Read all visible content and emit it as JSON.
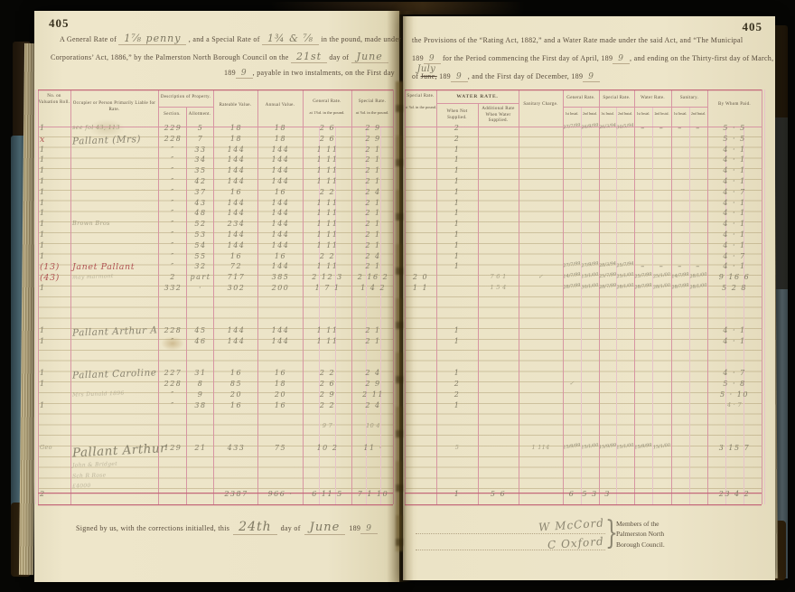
{
  "palette": {
    "page": "#ece4c8",
    "rule_pink": "#d795a3",
    "rule_red": "#c4697a",
    "pencil": "#837d67",
    "red_ink": "#b15454"
  },
  "left_page": {
    "page_number": "405",
    "header": {
      "l1a": "A General Rate of",
      "l1h1": "1⅞ penny",
      "l1b": ", and a Special Rate of",
      "l1h2": "1¾ & ⅞",
      "l1c": "in the pound, made under",
      "l2a": "Corporations’ Act, 1886,” by the Palmerston North Borough Council on the",
      "l2h1": "21st",
      "l2b": "day of",
      "l2h2": "June",
      "l3a": "189",
      "l3h1": "9",
      "l3b": ", payable in two instalments, on the First day"
    },
    "columns": {
      "vr": "No. on Valuation Roll.",
      "occ": "Occupier or Person Primarily Liable for Rate.",
      "desc": "Description of Property.",
      "sec": "Section.",
      "al": "Allotment.",
      "rv": "Rateable Value.",
      "av": "Annual Value.",
      "g1": "General Rate.",
      "g2": "at 1⅞d. in the pound.",
      "s1": "Special Rate.",
      "s2": "at ⅞d. in the pound."
    },
    "entries": [
      [
        0,
        "occ",
        "see fol 43, 113",
        "f"
      ],
      [
        0,
        "vr",
        "1"
      ],
      [
        0,
        "sec",
        "229"
      ],
      [
        0,
        "al",
        "5"
      ],
      [
        0,
        "rv",
        "18"
      ],
      [
        0,
        "av",
        "18"
      ],
      [
        0,
        "g",
        "2 6"
      ],
      [
        0,
        "s",
        "2 9"
      ],
      [
        1,
        "vr",
        "x",
        "r"
      ],
      [
        1,
        "occ",
        "Pallant (Mrs)",
        "n"
      ],
      [
        1,
        "sec",
        "228"
      ],
      [
        1,
        "al",
        "7"
      ],
      [
        1,
        "rv",
        "18"
      ],
      [
        1,
        "av",
        "18"
      ],
      [
        1,
        "g",
        "2 6"
      ],
      [
        1,
        "s",
        "2 9"
      ],
      [
        2,
        "vr",
        "1"
      ],
      [
        2,
        "sec",
        "″"
      ],
      [
        2,
        "al",
        "33"
      ],
      [
        2,
        "rv",
        "144"
      ],
      [
        2,
        "av",
        "144"
      ],
      [
        2,
        "g",
        "1 11"
      ],
      [
        2,
        "s",
        "2 1"
      ],
      [
        3,
        "vr",
        "1"
      ],
      [
        3,
        "sec",
        "″"
      ],
      [
        3,
        "al",
        "34"
      ],
      [
        3,
        "rv",
        "144"
      ],
      [
        3,
        "av",
        "144"
      ],
      [
        3,
        "g",
        "1 11"
      ],
      [
        3,
        "s",
        "2 1"
      ],
      [
        4,
        "vr",
        "1"
      ],
      [
        4,
        "sec",
        "″"
      ],
      [
        4,
        "al",
        "35"
      ],
      [
        4,
        "rv",
        "144"
      ],
      [
        4,
        "av",
        "144"
      ],
      [
        4,
        "g",
        "1 11"
      ],
      [
        4,
        "s",
        "2 1"
      ],
      [
        5,
        "vr",
        "1"
      ],
      [
        5,
        "sec",
        "″"
      ],
      [
        5,
        "al",
        "42"
      ],
      [
        5,
        "rv",
        "144"
      ],
      [
        5,
        "av",
        "144"
      ],
      [
        5,
        "g",
        "1 11"
      ],
      [
        5,
        "s",
        "2 1"
      ],
      [
        6,
        "vr",
        "1"
      ],
      [
        6,
        "sec",
        "″"
      ],
      [
        6,
        "al",
        "37"
      ],
      [
        6,
        "rv",
        "16"
      ],
      [
        6,
        "av",
        "16"
      ],
      [
        6,
        "g",
        "2 2"
      ],
      [
        6,
        "s",
        "2 4"
      ],
      [
        7,
        "vr",
        "1"
      ],
      [
        7,
        "sec",
        "″"
      ],
      [
        7,
        "al",
        "43"
      ],
      [
        7,
        "rv",
        "144"
      ],
      [
        7,
        "av",
        "144"
      ],
      [
        7,
        "g",
        "1 11"
      ],
      [
        7,
        "s",
        "2 1"
      ],
      [
        8,
        "vr",
        "1"
      ],
      [
        8,
        "sec",
        "″"
      ],
      [
        8,
        "al",
        "48"
      ],
      [
        8,
        "rv",
        "144"
      ],
      [
        8,
        "av",
        "144"
      ],
      [
        8,
        "g",
        "1 11"
      ],
      [
        8,
        "s",
        "2 1"
      ],
      [
        9,
        "vr",
        "1"
      ],
      [
        9,
        "occ",
        "Brown Bros",
        "f"
      ],
      [
        9,
        "sec",
        "″"
      ],
      [
        9,
        "al",
        "52"
      ],
      [
        9,
        "rv",
        "234"
      ],
      [
        9,
        "av",
        "144"
      ],
      [
        9,
        "g",
        "1 11"
      ],
      [
        9,
        "s",
        "2 1"
      ],
      [
        10,
        "vr",
        "1"
      ],
      [
        10,
        "sec",
        "″"
      ],
      [
        10,
        "al",
        "53"
      ],
      [
        10,
        "rv",
        "144"
      ],
      [
        10,
        "av",
        "144"
      ],
      [
        10,
        "g",
        "1 11"
      ],
      [
        10,
        "s",
        "2 1"
      ],
      [
        11,
        "vr",
        "1"
      ],
      [
        11,
        "sec",
        "″"
      ],
      [
        11,
        "al",
        "54"
      ],
      [
        11,
        "rv",
        "144"
      ],
      [
        11,
        "av",
        "144"
      ],
      [
        11,
        "g",
        "1 11"
      ],
      [
        11,
        "s",
        "2 1"
      ],
      [
        12,
        "vr",
        "1"
      ],
      [
        12,
        "sec",
        "″"
      ],
      [
        12,
        "al",
        "55"
      ],
      [
        12,
        "rv",
        "16"
      ],
      [
        12,
        "av",
        "16"
      ],
      [
        12,
        "g",
        "2 2"
      ],
      [
        12,
        "s",
        "2 4"
      ],
      [
        13,
        "vr",
        "(13)",
        "r"
      ],
      [
        13,
        "occ",
        "Janet Pallant",
        "r"
      ],
      [
        13,
        "sec",
        "″"
      ],
      [
        13,
        "al",
        "32"
      ],
      [
        13,
        "rv",
        "72"
      ],
      [
        13,
        "av",
        "144"
      ],
      [
        13,
        "g",
        "1 11"
      ],
      [
        13,
        "s",
        "2 1"
      ],
      [
        14,
        "vr",
        "(43)",
        "r"
      ],
      [
        14,
        "occ",
        "may marmont",
        "f2"
      ],
      [
        14,
        "sec",
        "2"
      ],
      [
        14,
        "al",
        "part"
      ],
      [
        14,
        "rv",
        "717"
      ],
      [
        14,
        "av",
        "385"
      ],
      [
        14,
        "g",
        "2 12 3"
      ],
      [
        14,
        "s",
        "2 16 2"
      ],
      [
        15,
        "vr",
        "1"
      ],
      [
        15,
        "sec",
        "332"
      ],
      [
        15,
        "al",
        "·"
      ],
      [
        15,
        "rv",
        "302"
      ],
      [
        15,
        "av",
        "200"
      ],
      [
        15,
        "g",
        "1 7 1"
      ],
      [
        15,
        "s",
        "1 4 2"
      ],
      [
        19,
        "vr",
        "1"
      ],
      [
        19,
        "occ",
        "Pallant Arthur A",
        "n"
      ],
      [
        19,
        "sec",
        "228"
      ],
      [
        19,
        "al",
        "45"
      ],
      [
        19,
        "rv",
        "144"
      ],
      [
        19,
        "av",
        "144"
      ],
      [
        19,
        "g",
        "1 11"
      ],
      [
        19,
        "s",
        "2 1"
      ],
      [
        20,
        "vr",
        "1"
      ],
      [
        20,
        "sec",
        "″"
      ],
      [
        20,
        "al",
        "46"
      ],
      [
        20,
        "rv",
        "144"
      ],
      [
        20,
        "av",
        "144"
      ],
      [
        20,
        "g",
        "1 11"
      ],
      [
        20,
        "s",
        "2 1"
      ],
      [
        23,
        "vr",
        "1"
      ],
      [
        23,
        "occ",
        "Pallant Caroline",
        "n"
      ],
      [
        23,
        "sec",
        "227"
      ],
      [
        23,
        "al",
        "31"
      ],
      [
        23,
        "rv",
        "16"
      ],
      [
        23,
        "av",
        "16"
      ],
      [
        23,
        "g",
        "2 2"
      ],
      [
        23,
        "s",
        "2 4"
      ],
      [
        24,
        "vr",
        "1"
      ],
      [
        24,
        "sec",
        "228"
      ],
      [
        24,
        "al",
        "8"
      ],
      [
        24,
        "rv",
        "85"
      ],
      [
        24,
        "av",
        "18"
      ],
      [
        24,
        "g",
        "2 6"
      ],
      [
        24,
        "s",
        "2 9"
      ],
      [
        25,
        "occ",
        "Mrs Dunald 1896",
        "f2"
      ],
      [
        25,
        "sec",
        "″"
      ],
      [
        25,
        "al",
        "9"
      ],
      [
        25,
        "rv",
        "20"
      ],
      [
        25,
        "av",
        "20"
      ],
      [
        25,
        "g",
        "2 9"
      ],
      [
        25,
        "s",
        "2 11"
      ],
      [
        26,
        "vr",
        "1"
      ],
      [
        26,
        "sec",
        "″"
      ],
      [
        26,
        "al",
        "38"
      ],
      [
        26,
        "rv",
        "16"
      ],
      [
        26,
        "av",
        "16"
      ],
      [
        26,
        "g",
        "2 2"
      ],
      [
        26,
        "s",
        "2 4"
      ],
      [
        28,
        "g",
        "9 7",
        "f"
      ],
      [
        28,
        "s",
        "10 4",
        "f"
      ],
      [
        30,
        "vr",
        "Geo",
        "f"
      ],
      [
        30,
        "occ",
        "Pallant Arthur",
        "nb"
      ],
      [
        30,
        "sec",
        "129"
      ],
      [
        30,
        "al",
        "21"
      ],
      [
        30,
        "rv",
        "433"
      ],
      [
        30,
        "av",
        "75"
      ],
      [
        30,
        "g",
        "10 2"
      ],
      [
        30,
        "s",
        "11 ·"
      ],
      [
        31.6,
        "occ",
        "John & Bridget",
        "f2"
      ],
      [
        32.6,
        "occ",
        "Sch R Rose",
        "f2"
      ],
      [
        33.6,
        "occ",
        "£4000",
        "f2"
      ],
      [
        34.3,
        "vr",
        "2"
      ],
      [
        34.3,
        "rv",
        "2387"
      ],
      [
        34.3,
        "av",
        "966 ·"
      ],
      [
        34.3,
        "g",
        "6 11 5"
      ],
      [
        34.3,
        "s",
        "7 1 10"
      ]
    ],
    "signature": {
      "pre": "Signed by us, with the corrections initialled, this",
      "hw_day": "24th",
      "mid": "day of",
      "hw_month": "June",
      "year": "189",
      "hw_year": "9"
    }
  },
  "right_page": {
    "page_number": "405",
    "header": {
      "l1": "the Provisions of the “Rating Act, 1882,” and a Water Rate made under the said Act, and “The Municipal",
      "l2a": "189",
      "l2h1": "9",
      "l2b": "for the Period commencing the First day of April, 189",
      "l2h2": "9",
      "l2c": ", and ending on the Thirty-first day of March,",
      "l3a": "of",
      "l3strike": "June,",
      "l3fly": "July",
      "l3b": "189",
      "l3h1": "9",
      "l3c": ", and the First day of December, 189",
      "l3h2": "9"
    },
    "columns": {
      "sp1": "Special Rate.",
      "sp2": "at ⅞d. in the pound.",
      "water": "WATER RATE.",
      "wn": "When Not Supplied.",
      "wa": "Additional Rate When Water Supplied.",
      "sc": "Sanitary Charge.",
      "g": "General Rate.",
      "s": "Special Rate.",
      "w": "Water Rate.",
      "a": "Sanitary.",
      "i1": "1st Instal.",
      "i2": "2nd Instal.",
      "by": "By Whom Paid."
    },
    "entries": [
      [
        0,
        "wn",
        "2"
      ],
      [
        0,
        "g1",
        "27/7/99",
        "d"
      ],
      [
        0,
        "g2",
        "26/9/99",
        "d"
      ],
      [
        0,
        "s1",
        "26/3/94",
        "d"
      ],
      [
        0,
        "s2",
        "30/5/94",
        "d"
      ],
      [
        0,
        "w1",
        "–"
      ],
      [
        0,
        "w2",
        "–"
      ],
      [
        0,
        "a1",
        "–"
      ],
      [
        0,
        "a2",
        "–"
      ],
      [
        0,
        "by",
        "5 · 5"
      ],
      [
        1,
        "wn",
        "2"
      ],
      [
        1,
        "by",
        "5 · 5"
      ],
      [
        2,
        "wn",
        "1"
      ],
      [
        2,
        "by",
        "4 · 1"
      ],
      [
        3,
        "wn",
        "1"
      ],
      [
        3,
        "by",
        "4 · 1"
      ],
      [
        4,
        "wn",
        "1"
      ],
      [
        4,
        "by",
        "4 · 1"
      ],
      [
        5,
        "wn",
        "1"
      ],
      [
        5,
        "by",
        "4 · 1"
      ],
      [
        6,
        "wn",
        "1"
      ],
      [
        6,
        "by",
        "4 · 7"
      ],
      [
        7,
        "wn",
        "1"
      ],
      [
        7,
        "by",
        "4 · 1"
      ],
      [
        8,
        "wn",
        "1"
      ],
      [
        8,
        "by",
        "4 · 1"
      ],
      [
        9,
        "wn",
        "1"
      ],
      [
        9,
        "by",
        "4 · 1"
      ],
      [
        10,
        "wn",
        "1"
      ],
      [
        10,
        "by",
        "4 · 1"
      ],
      [
        11,
        "wn",
        "1"
      ],
      [
        11,
        "by",
        "4 · 1"
      ],
      [
        12,
        "wn",
        "1"
      ],
      [
        12,
        "by",
        "4 · 7"
      ],
      [
        13,
        "wn",
        "1"
      ],
      [
        13,
        "g1",
        "27/7/99",
        "d"
      ],
      [
        13,
        "g2",
        "27/9/99",
        "d"
      ],
      [
        13,
        "s1",
        "28/3/94",
        "d"
      ],
      [
        13,
        "s2",
        "25/7/94",
        "d"
      ],
      [
        13,
        "w1",
        "–"
      ],
      [
        13,
        "w2",
        "–"
      ],
      [
        13,
        "a1",
        "–"
      ],
      [
        13,
        "a2",
        "–"
      ],
      [
        13,
        "by",
        "4 · 1"
      ],
      [
        14,
        "sp",
        "2 0"
      ],
      [
        14,
        "wa",
        "7 6 1",
        "f"
      ],
      [
        14,
        "sc",
        "✓",
        "f"
      ],
      [
        14,
        "g1",
        "14/7/99",
        "d"
      ],
      [
        14,
        "g2",
        "13/1/00",
        "d"
      ],
      [
        14,
        "s1",
        "25/7/99",
        "d"
      ],
      [
        14,
        "s2",
        "25/1/00",
        "d"
      ],
      [
        14,
        "w1",
        "25/7/99",
        "d"
      ],
      [
        14,
        "w2",
        "25/1/00",
        "d"
      ],
      [
        14,
        "a1",
        "14/7/99",
        "d"
      ],
      [
        14,
        "a2",
        "28/1/00",
        "d"
      ],
      [
        14,
        "by",
        "9 16 6"
      ],
      [
        15,
        "sp",
        "1 1"
      ],
      [
        15,
        "wa",
        "1 5 4",
        "f"
      ],
      [
        15,
        "g1",
        "28/7/99",
        "d"
      ],
      [
        15,
        "g2",
        "30/1/00",
        "d"
      ],
      [
        15,
        "s1",
        "28/7/99",
        "d"
      ],
      [
        15,
        "s2",
        "28/1/00",
        "d"
      ],
      [
        15,
        "w1",
        "28/7/99",
        "d"
      ],
      [
        15,
        "w2",
        "28/1/00",
        "d"
      ],
      [
        15,
        "a1",
        "28/7/99",
        "d"
      ],
      [
        15,
        "a2",
        "28/1/00",
        "d"
      ],
      [
        15,
        "by",
        "5 2 8"
      ],
      [
        19,
        "wn",
        "1"
      ],
      [
        19,
        "by",
        "4 · 1"
      ],
      [
        20,
        "wn",
        "1"
      ],
      [
        20,
        "by",
        "4 · 1"
      ],
      [
        23,
        "wn",
        "1"
      ],
      [
        23,
        "by",
        "4 · 7"
      ],
      [
        24,
        "wn",
        "2"
      ],
      [
        24,
        "g1",
        "✓",
        "f"
      ],
      [
        24,
        "by",
        "5 · 8"
      ],
      [
        25,
        "wn",
        "2"
      ],
      [
        25,
        "by",
        "5 · 10"
      ],
      [
        26,
        "wn",
        "1"
      ],
      [
        26,
        "by",
        "4 · 7",
        "f"
      ],
      [
        30,
        "wn",
        "5",
        "f"
      ],
      [
        30,
        "sc",
        "1 114",
        "f"
      ],
      [
        30,
        "g1",
        "15/9/99",
        "d"
      ],
      [
        30,
        "g2",
        "15/1/00",
        "d"
      ],
      [
        30,
        "s1",
        "15/9/99",
        "d"
      ],
      [
        30,
        "s2",
        "15/1/00",
        "d"
      ],
      [
        30,
        "w1",
        "15/9/99",
        "d"
      ],
      [
        30,
        "w2",
        "15/1/00",
        "d"
      ],
      [
        30,
        "by",
        "3 15 7"
      ],
      [
        34.3,
        "wn",
        "1"
      ],
      [
        34.3,
        "wa",
        "5 6"
      ],
      [
        34.3,
        "g1",
        "6"
      ],
      [
        34.3,
        "g2",
        "5 3"
      ],
      [
        34.3,
        "s1",
        "3"
      ],
      [
        34.3,
        "by",
        "23 4 2"
      ]
    ],
    "signatures": {
      "sig1": "W McCord",
      "sig2": "C Oxford",
      "members": "Members of the\nPalmerston North\nBorough Council."
    }
  }
}
